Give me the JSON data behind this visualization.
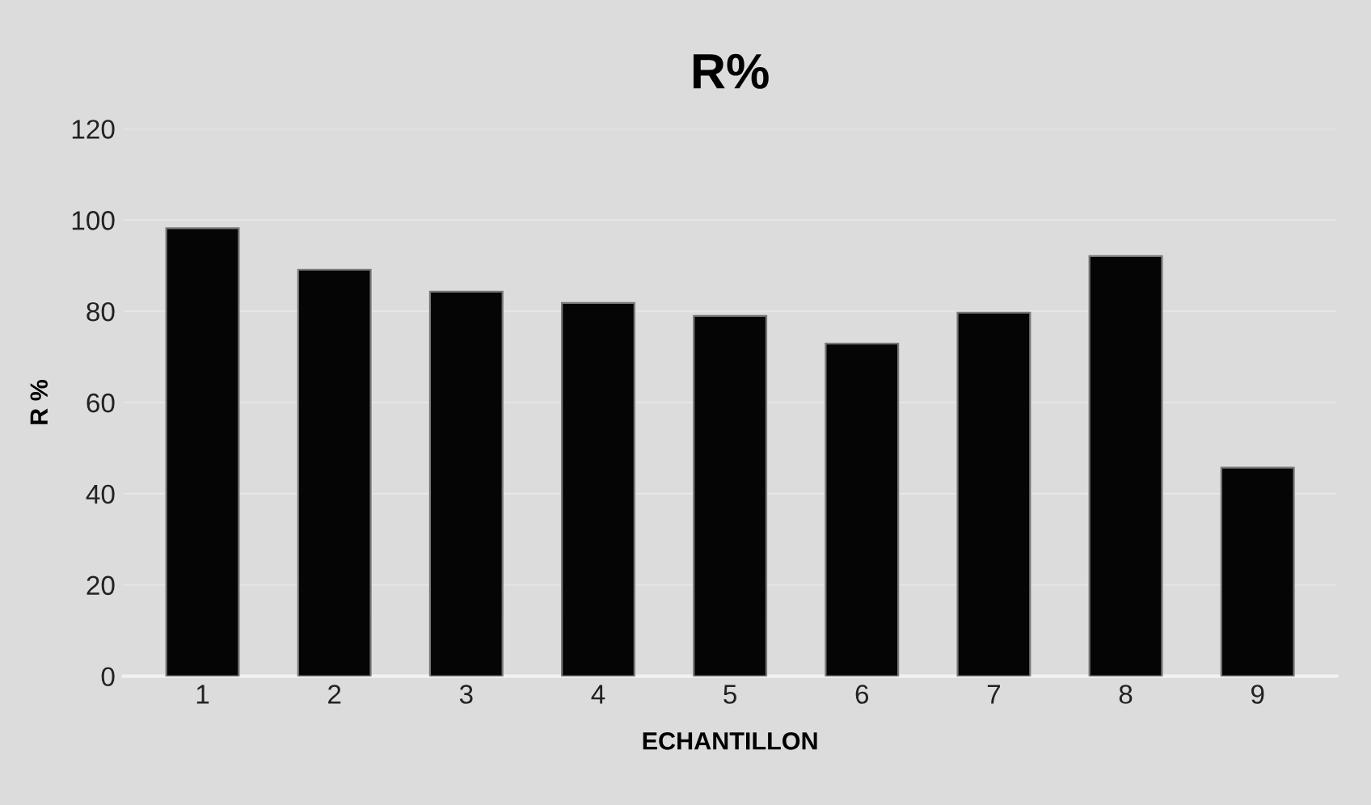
{
  "chart_data": {
    "type": "bar",
    "title": "R%",
    "xlabel": "ECHANTILLON",
    "ylabel": "R %",
    "categories": [
      "1",
      "2",
      "3",
      "4",
      "5",
      "6",
      "7",
      "8",
      "9"
    ],
    "values": [
      98.2,
      89.1,
      84.3,
      81.8,
      79.0,
      72.9,
      79.7,
      92.1,
      45.7
    ],
    "color": "#050505",
    "ylim": [
      0,
      120
    ],
    "yticks": [
      0,
      20,
      40,
      60,
      80,
      100,
      120
    ],
    "grid": "y"
  }
}
